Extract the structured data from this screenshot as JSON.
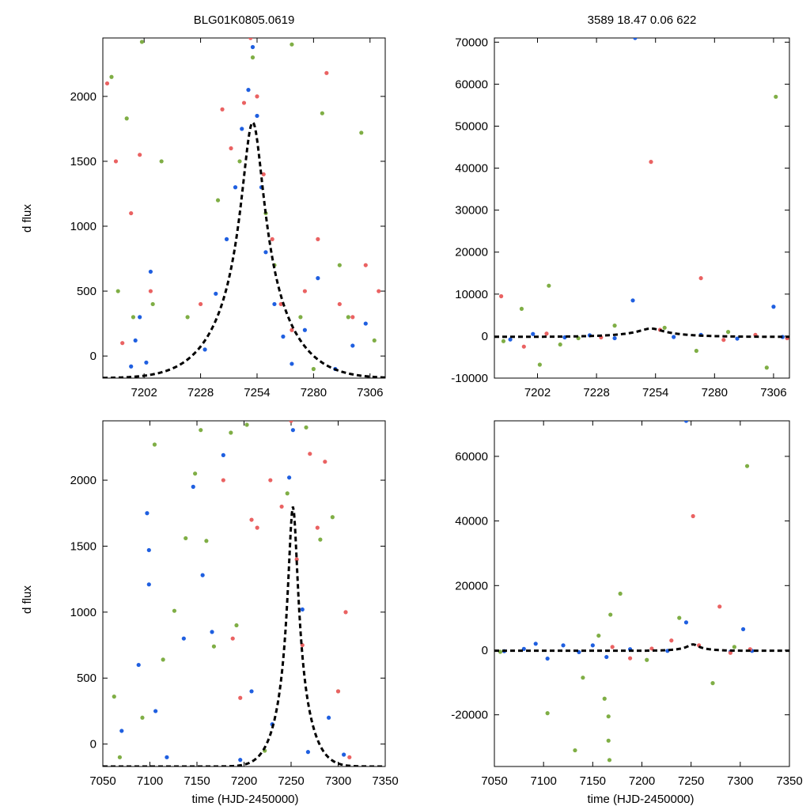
{
  "figure": {
    "title_left": "BLG01K0805.0619",
    "title_right": "3589  18.47  0.06  622",
    "ylabel": "d flux",
    "xlabel": "time (HJD-2450000)"
  },
  "colors": {
    "blue": "#1f5fe0",
    "green": "#7fae45",
    "red": "#ea6262",
    "model": "#000000"
  },
  "chart_data": [
    {
      "type": "scatter",
      "panel": "top-left",
      "title": "BLG01K0805.0619",
      "xlabel": "",
      "ylabel": "d flux",
      "xlim": [
        7183,
        7313
      ],
      "ylim": [
        -170,
        2450
      ],
      "xticks": [
        7202,
        7228,
        7254,
        7280,
        7306
      ],
      "yticks": [
        0,
        500,
        1000,
        1500,
        2000
      ],
      "series": [
        {
          "name": "blue",
          "points": [
            [
              7196,
              -80
            ],
            [
              7198,
              120
            ],
            [
              7200,
              300
            ],
            [
              7203,
              -50
            ],
            [
              7205,
              650
            ],
            [
              7230,
              50
            ],
            [
              7235,
              480
            ],
            [
              7240,
              900
            ],
            [
              7244,
              1300
            ],
            [
              7247,
              1750
            ],
            [
              7250,
              2050
            ],
            [
              7252,
              2380
            ],
            [
              7254,
              1850
            ],
            [
              7256,
              1300
            ],
            [
              7258,
              800
            ],
            [
              7262,
              400
            ],
            [
              7266,
              150
            ],
            [
              7270,
              -60
            ],
            [
              7276,
              200
            ],
            [
              7282,
              600
            ],
            [
              7290,
              -100
            ],
            [
              7298,
              80
            ],
            [
              7304,
              250
            ]
          ]
        },
        {
          "name": "green",
          "points": [
            [
              7187,
              2150
            ],
            [
              7190,
              500
            ],
            [
              7194,
              1830
            ],
            [
              7197,
              300
            ],
            [
              7201,
              2420
            ],
            [
              7206,
              400
            ],
            [
              7210,
              1500
            ],
            [
              7222,
              300
            ],
            [
              7236,
              1200
            ],
            [
              7246,
              1500
            ],
            [
              7252,
              2300
            ],
            [
              7258,
              1100
            ],
            [
              7262,
              700
            ],
            [
              7270,
              2400
            ],
            [
              7274,
              300
            ],
            [
              7280,
              -100
            ],
            [
              7284,
              1870
            ],
            [
              7292,
              700
            ],
            [
              7296,
              300
            ],
            [
              7302,
              1720
            ],
            [
              7308,
              120
            ]
          ]
        },
        {
          "name": "red",
          "points": [
            [
              7185,
              2100
            ],
            [
              7189,
              1500
            ],
            [
              7192,
              100
            ],
            [
              7196,
              1100
            ],
            [
              7200,
              1550
            ],
            [
              7205,
              500
            ],
            [
              7228,
              400
            ],
            [
              7238,
              1900
            ],
            [
              7242,
              1600
            ],
            [
              7248,
              1950
            ],
            [
              7251,
              2450
            ],
            [
              7254,
              2000
            ],
            [
              7257,
              1400
            ],
            [
              7261,
              900
            ],
            [
              7265,
              400
            ],
            [
              7270,
              200
            ],
            [
              7276,
              500
            ],
            [
              7282,
              900
            ],
            [
              7286,
              2180
            ],
            [
              7292,
              400
            ],
            [
              7298,
              300
            ],
            [
              7304,
              700
            ],
            [
              7310,
              500
            ]
          ]
        }
      ],
      "model": {
        "t0": 7252,
        "peak": 1800,
        "base": -170,
        "width": 16
      }
    },
    {
      "type": "scatter",
      "panel": "top-right",
      "title": "3589  18.47  0.06  622",
      "xlabel": "",
      "ylabel": "",
      "xlim": [
        7183,
        7313
      ],
      "ylim": [
        -10000,
        71000
      ],
      "xticks": [
        7202,
        7228,
        7254,
        7280,
        7306
      ],
      "yticks": [
        -10000,
        0,
        10000,
        20000,
        30000,
        40000,
        50000,
        60000,
        70000
      ],
      "series": [
        {
          "name": "blue",
          "points": [
            [
              7190,
              -800
            ],
            [
              7200,
              500
            ],
            [
              7214,
              -300
            ],
            [
              7225,
              200
            ],
            [
              7236,
              -500
            ],
            [
              7244,
              8500
            ],
            [
              7245,
              71000
            ],
            [
              7262,
              -200
            ],
            [
              7274,
              300
            ],
            [
              7290,
              -600
            ],
            [
              7306,
              7000
            ],
            [
              7310,
              -200
            ]
          ]
        },
        {
          "name": "green",
          "points": [
            [
              7187,
              -1200
            ],
            [
              7195,
              6500
            ],
            [
              7203,
              -6800
            ],
            [
              7207,
              12000
            ],
            [
              7212,
              -2000
            ],
            [
              7220,
              -500
            ],
            [
              7236,
              2500
            ],
            [
              7258,
              2000
            ],
            [
              7272,
              -3500
            ],
            [
              7286,
              1000
            ],
            [
              7303,
              -7500
            ],
            [
              7307,
              57000
            ]
          ]
        },
        {
          "name": "red",
          "points": [
            [
              7186,
              9500
            ],
            [
              7196,
              -2500
            ],
            [
              7206,
              600
            ],
            [
              7230,
              -300
            ],
            [
              7252,
              41500
            ],
            [
              7256,
              1500
            ],
            [
              7274,
              13800
            ],
            [
              7284,
              -900
            ],
            [
              7298,
              300
            ],
            [
              7312,
              -500
            ]
          ]
        }
      ],
      "model": {
        "t0": 7252,
        "peak": 1800,
        "base": -170,
        "width": 16
      }
    },
    {
      "type": "scatter",
      "panel": "bottom-left",
      "title": "",
      "xlabel": "time (HJD-2450000)",
      "ylabel": "d flux",
      "xlim": [
        7050,
        7350
      ],
      "ylim": [
        -170,
        2450
      ],
      "xticks": [
        7050,
        7100,
        7150,
        7200,
        7250,
        7300,
        7350
      ],
      "yticks": [
        0,
        500,
        1000,
        1500,
        2000
      ],
      "series": [
        {
          "name": "blue",
          "points": [
            [
              7070,
              100
            ],
            [
              7088,
              600
            ],
            [
              7097,
              1750
            ],
            [
              7099,
              1470
            ],
            [
              7099,
              1210
            ],
            [
              7106,
              250
            ],
            [
              7118,
              -100
            ],
            [
              7136,
              800
            ],
            [
              7146,
              1950
            ],
            [
              7156,
              1280
            ],
            [
              7166,
              850
            ],
            [
              7178,
              2190
            ],
            [
              7196,
              -120
            ],
            [
              7208,
              400
            ],
            [
              7230,
              150
            ],
            [
              7248,
              2020
            ],
            [
              7252,
              2380
            ],
            [
              7262,
              1020
            ],
            [
              7268,
              -60
            ],
            [
              7290,
              200
            ],
            [
              7306,
              -80
            ]
          ]
        },
        {
          "name": "green",
          "points": [
            [
              7062,
              360
            ],
            [
              7068,
              -100
            ],
            [
              7092,
              200
            ],
            [
              7105,
              2270
            ],
            [
              7114,
              640
            ],
            [
              7126,
              1010
            ],
            [
              7138,
              1560
            ],
            [
              7148,
              2050
            ],
            [
              7154,
              2380
            ],
            [
              7160,
              1540
            ],
            [
              7168,
              740
            ],
            [
              7186,
              2360
            ],
            [
              7192,
              900
            ],
            [
              7203,
              2420
            ],
            [
              7222,
              -50
            ],
            [
              7246,
              1900
            ],
            [
              7266,
              2400
            ],
            [
              7281,
              1550
            ],
            [
              7294,
              1720
            ],
            [
              7300,
              400
            ]
          ]
        },
        {
          "name": "red",
          "points": [
            [
              7178,
              2000
            ],
            [
              7188,
              800
            ],
            [
              7196,
              350
            ],
            [
              7208,
              1700
            ],
            [
              7214,
              1640
            ],
            [
              7228,
              2000
            ],
            [
              7240,
              1800
            ],
            [
              7250,
              2450
            ],
            [
              7256,
              1400
            ],
            [
              7262,
              750
            ],
            [
              7270,
              2200
            ],
            [
              7278,
              1640
            ],
            [
              7286,
              2140
            ],
            [
              7300,
              400
            ],
            [
              7308,
              1000
            ],
            [
              7312,
              -100
            ]
          ]
        }
      ],
      "model": {
        "t0": 7252,
        "peak": 1800,
        "base": -170,
        "width": 16
      }
    },
    {
      "type": "scatter",
      "panel": "bottom-right",
      "title": "",
      "xlabel": "time (HJD-2450000)",
      "ylabel": "",
      "xlim": [
        7050,
        7350
      ],
      "ylim": [
        -36000,
        71000
      ],
      "xticks": [
        7050,
        7100,
        7150,
        7200,
        7250,
        7300,
        7350
      ],
      "yticks": [
        -20000,
        0,
        20000,
        40000,
        60000
      ],
      "series": [
        {
          "name": "blue",
          "points": [
            [
              7060,
              -300
            ],
            [
              7080,
              400
            ],
            [
              7092,
              2000
            ],
            [
              7104,
              -2600
            ],
            [
              7120,
              1500
            ],
            [
              7136,
              -600
            ],
            [
              7150,
              1500
            ],
            [
              7164,
              -2100
            ],
            [
              7188,
              300
            ],
            [
              7226,
              -200
            ],
            [
              7245,
              8600
            ],
            [
              7245,
              71000
            ],
            [
              7290,
              -500
            ],
            [
              7303,
              6500
            ],
            [
              7312,
              -200
            ]
          ]
        },
        {
          "name": "green",
          "points": [
            [
              7056,
              -500
            ],
            [
              7104,
              -19500
            ],
            [
              7132,
              -31000
            ],
            [
              7140,
              -8500
            ],
            [
              7156,
              4500
            ],
            [
              7162,
              -15000
            ],
            [
              7166,
              -28000
            ],
            [
              7167,
              -34000
            ],
            [
              7166,
              -20500
            ],
            [
              7168,
              11000
            ],
            [
              7178,
              17500
            ],
            [
              7205,
              -3000
            ],
            [
              7238,
              10000
            ],
            [
              7272,
              -10200
            ],
            [
              7294,
              1000
            ],
            [
              7307,
              57000
            ]
          ]
        },
        {
          "name": "red",
          "points": [
            [
              7170,
              1000
            ],
            [
              7188,
              -2500
            ],
            [
              7210,
              500
            ],
            [
              7230,
              3000
            ],
            [
              7252,
              41500
            ],
            [
              7258,
              1500
            ],
            [
              7279,
              13500
            ],
            [
              7290,
              -800
            ],
            [
              7310,
              300
            ]
          ]
        }
      ],
      "model": {
        "t0": 7252,
        "peak": 1800,
        "base": -170,
        "width": 16
      }
    }
  ]
}
